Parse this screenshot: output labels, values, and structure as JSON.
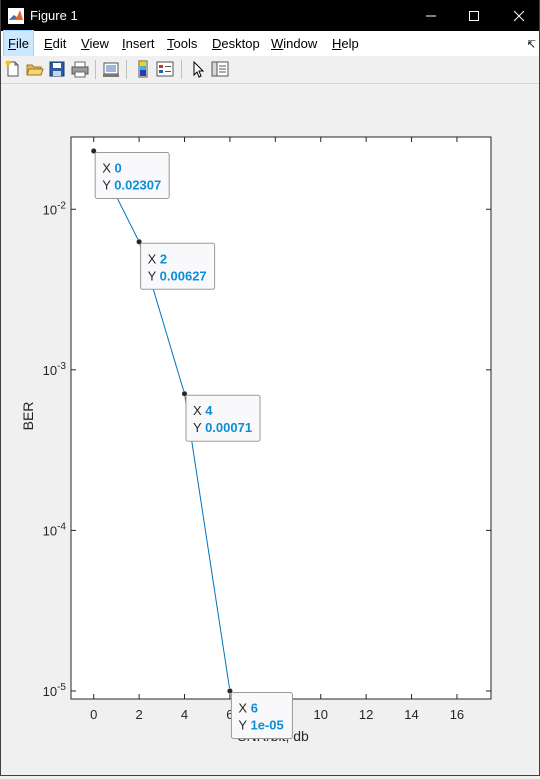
{
  "window": {
    "title": "Figure 1"
  },
  "menu": [
    "File",
    "Edit",
    "View",
    "Insert",
    "Tools",
    "Desktop",
    "Window",
    "Help"
  ],
  "menu_underline": [
    "F",
    "E",
    "V",
    "I",
    "T",
    "D",
    "W",
    "H"
  ],
  "toolbar_icons": [
    "new-figure-icon",
    "open-file-icon",
    "save-icon",
    "print-icon",
    "link-plot-icon",
    "insert-colorbar-icon",
    "insert-legend-icon",
    "edit-plot-arrow-icon",
    "property-inspector-icon"
  ],
  "chart_data": {
    "type": "line",
    "x": [
      0,
      2,
      4,
      6
    ],
    "y": [
      0.02307,
      0.00627,
      0.00071,
      1e-05
    ],
    "xlabel": "SNR/bit, db",
    "ylabel": "BER",
    "xlim": [
      -1,
      17.5
    ],
    "ylim_log10": [
      -5.05,
      -1.55
    ],
    "yscale": "log",
    "xticks": [
      0,
      2,
      4,
      6,
      8,
      10,
      12,
      14,
      16
    ],
    "yticks": [
      {
        "exp": -2,
        "base": "10",
        "pow": "-2"
      },
      {
        "exp": -3,
        "base": "10",
        "pow": "-3"
      },
      {
        "exp": -4,
        "base": "10",
        "pow": "-4"
      },
      {
        "exp": -5,
        "base": "10",
        "pow": "-5"
      }
    ],
    "line_color": "#0072bd",
    "datatips": [
      {
        "x": "0",
        "y": "0.02307"
      },
      {
        "x": "2",
        "y": "0.00627"
      },
      {
        "x": "4",
        "y": "0.00071"
      },
      {
        "x": "6",
        "y": "1e-05"
      }
    ]
  }
}
